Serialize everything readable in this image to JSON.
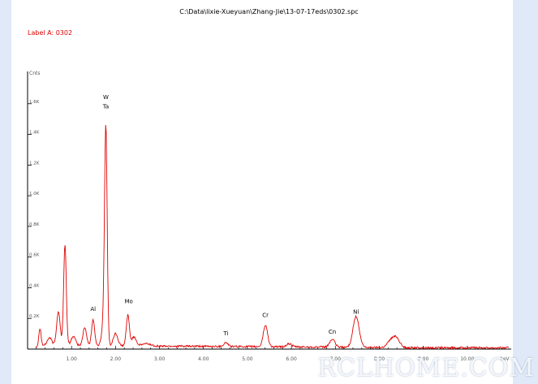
{
  "window": {
    "file_path": "C:\\Data\\lixie-Xueyuan\\Zhang-Jie\\13-07-17eds\\0302.spc",
    "label": "Label A: 0302",
    "watermark": "RCLHOME.COM"
  },
  "colors": {
    "spectrum": "#e00000",
    "axis": "#000000",
    "tick_label": "#555555",
    "background": "#dfe9f7",
    "panel": "#ffffff"
  },
  "chart_data": {
    "type": "line",
    "title": "C:\\Data\\lixie-Xueyuan\\Zhang-Jie\\13-07-17eds\\0302.spc",
    "xlabel": "keV",
    "ylabel": "Cnts",
    "xlim": [
      0,
      11
    ],
    "ylim": [
      0,
      1.8
    ],
    "x_ticks": [
      "1.00",
      "2.00",
      "3.00",
      "4.00",
      "5.00",
      "6.00",
      "7.00",
      "8.00",
      "9.00",
      "10.00"
    ],
    "y_ticks": [
      "0.2K",
      "0.4K",
      "0.6K",
      "0.8K",
      "1.0K",
      "1.2K",
      "1.4K",
      "1.6K"
    ],
    "y_tick_values": [
      0.2,
      0.4,
      0.6,
      0.8,
      1.0,
      1.2,
      1.4,
      1.6
    ],
    "baseline": 0.025,
    "peaks": [
      {
        "x": 0.28,
        "height": 0.12,
        "width": 0.025
      },
      {
        "x": 0.5,
        "height": 0.05,
        "width": 0.05
      },
      {
        "x": 0.7,
        "height": 0.22,
        "width": 0.04
      },
      {
        "x": 0.85,
        "height": 0.66,
        "width": 0.03
      },
      {
        "x": 1.04,
        "height": 0.06,
        "width": 0.05
      },
      {
        "x": 1.3,
        "height": 0.12,
        "width": 0.04
      },
      {
        "x": 1.49,
        "height": 0.17,
        "width": 0.035
      },
      {
        "x": 1.72,
        "height": 0.12,
        "width": 0.04
      },
      {
        "x": 1.78,
        "height": 1.41,
        "width": 0.03
      },
      {
        "x": 2.0,
        "height": 0.08,
        "width": 0.05
      },
      {
        "x": 2.28,
        "height": 0.2,
        "width": 0.035
      },
      {
        "x": 2.42,
        "height": 0.06,
        "width": 0.05
      },
      {
        "x": 2.7,
        "height": 0.015,
        "width": 0.1
      },
      {
        "x": 4.51,
        "height": 0.025,
        "width": 0.05
      },
      {
        "x": 5.41,
        "height": 0.14,
        "width": 0.05
      },
      {
        "x": 5.95,
        "height": 0.02,
        "width": 0.06
      },
      {
        "x": 6.93,
        "height": 0.05,
        "width": 0.06
      },
      {
        "x": 7.47,
        "height": 0.2,
        "width": 0.07
      },
      {
        "x": 8.27,
        "height": 0.05,
        "width": 0.08
      },
      {
        "x": 8.4,
        "height": 0.055,
        "width": 0.07
      }
    ],
    "annotations": [
      {
        "label": "W",
        "x": 1.78,
        "y": 1.63
      },
      {
        "label": "Ta",
        "x": 1.78,
        "y": 1.57
      },
      {
        "label": "Mo",
        "x": 2.3,
        "y": 0.3
      },
      {
        "label": "Al",
        "x": 1.49,
        "y": 0.25
      },
      {
        "label": "Ti",
        "x": 4.51,
        "y": 0.09
      },
      {
        "label": "Cr",
        "x": 5.41,
        "y": 0.21
      },
      {
        "label": "Cn",
        "x": 6.93,
        "y": 0.1
      },
      {
        "label": "Ni",
        "x": 7.47,
        "y": 0.23
      }
    ],
    "grid": false,
    "legend": "none"
  }
}
